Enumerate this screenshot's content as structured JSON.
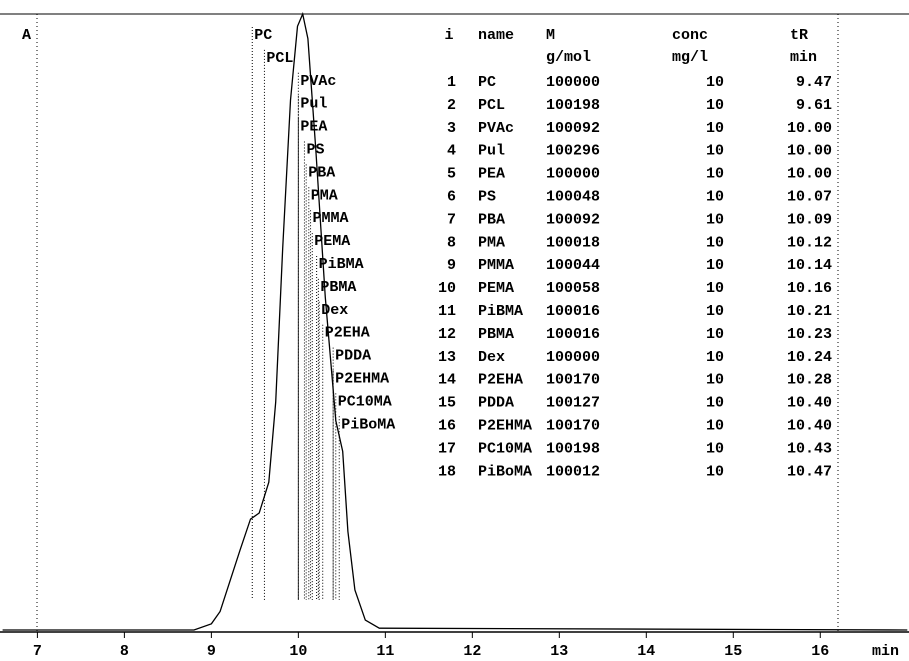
{
  "chart_data": {
    "type": "line",
    "y_label": "A",
    "x_label": "min",
    "color": "#000000",
    "x": [
      6.6,
      8.8,
      9.0,
      9.1,
      9.33,
      9.45,
      9.55,
      9.66,
      9.74,
      9.82,
      9.91,
      9.99,
      10.05,
      10.11,
      10.2,
      10.31,
      10.43,
      10.51,
      10.57,
      10.65,
      10.77,
      10.93,
      17.0
    ],
    "values": [
      0,
      0,
      1,
      3,
      13,
      18,
      19,
      24,
      37,
      62,
      86,
      98,
      100,
      96,
      78,
      54,
      34,
      29,
      16,
      6.5,
      1.6,
      0.3,
      0
    ],
    "xlim": [
      6.57,
      17.02
    ],
    "ylim": [
      0,
      100
    ],
    "xticks": [
      7,
      8,
      9,
      10,
      11,
      12,
      13,
      14,
      15,
      16
    ]
  },
  "table": {
    "columns": [
      {
        "title": "i"
      },
      {
        "title": "name"
      },
      {
        "title": "M",
        "unit": "g/mol"
      },
      {
        "title": "conc",
        "unit": "mg/l"
      },
      {
        "title": "tR",
        "unit": "min"
      }
    ],
    "rows": [
      [
        1,
        "PC",
        100000,
        10,
        "9.47"
      ],
      [
        2,
        "PCL",
        100198,
        10,
        "9.61"
      ],
      [
        3,
        "PVAc",
        100092,
        10,
        "10.00"
      ],
      [
        4,
        "Pul",
        100296,
        10,
        "10.00"
      ],
      [
        5,
        "PEA",
        100000,
        10,
        "10.00"
      ],
      [
        6,
        "PS",
        100048,
        10,
        "10.07"
      ],
      [
        7,
        "PBA",
        100092,
        10,
        "10.09"
      ],
      [
        8,
        "PMA",
        100018,
        10,
        "10.12"
      ],
      [
        9,
        "PMMA",
        100044,
        10,
        "10.14"
      ],
      [
        10,
        "PEMA",
        100058,
        10,
        "10.16"
      ],
      [
        11,
        "PiBMA",
        100016,
        10,
        "10.21"
      ],
      [
        12,
        "PBMA",
        100016,
        10,
        "10.23"
      ],
      [
        13,
        "Dex",
        100000,
        10,
        "10.24"
      ],
      [
        14,
        "P2EHA",
        100170,
        10,
        "10.28"
      ],
      [
        15,
        "PDDA",
        100127,
        10,
        "10.40"
      ],
      [
        16,
        "P2EHMA",
        100170,
        10,
        "10.40"
      ],
      [
        17,
        "PC10MA",
        100198,
        10,
        "10.43"
      ],
      [
        18,
        "PiBoMA",
        100012,
        10,
        "10.47"
      ]
    ]
  }
}
